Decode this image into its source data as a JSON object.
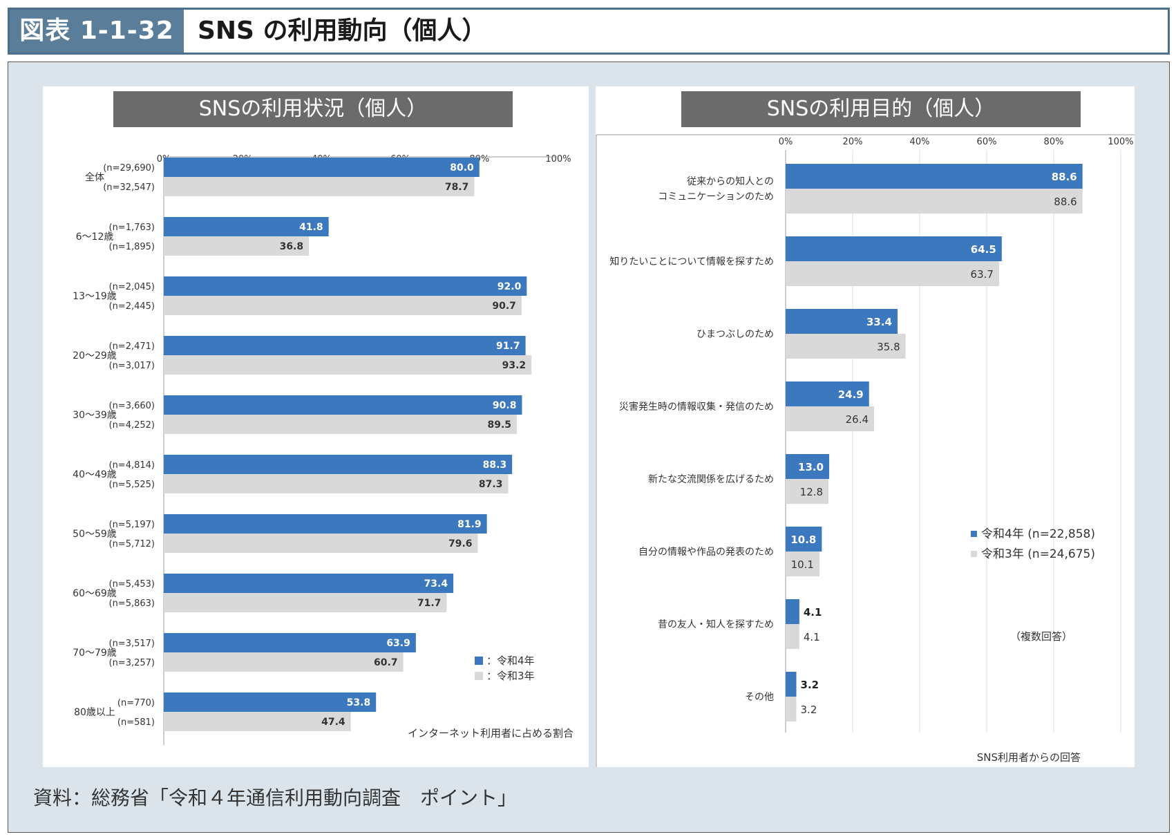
{
  "header": {
    "label": "図表 1-1-32",
    "title": "SNS の利用動向（個人）"
  },
  "source": "資料：総務省「令和４年通信利用動向調査　ポイント」",
  "colors": {
    "r4": "#3b78bd",
    "r3": "#d9d9d9",
    "panel": "#dbe4eb",
    "title_bg": "#6b6b6b",
    "header": "#5a7d9a"
  },
  "chart_data": [
    {
      "type": "bar",
      "orientation": "horizontal",
      "title": "SNSの利用状況（個人）",
      "xlim": [
        0,
        100
      ],
      "ticks": [
        "0%",
        "20%",
        "40%",
        "60%",
        "80%",
        "100%"
      ],
      "categories": [
        "全体",
        "6～12歳",
        "13～19歳",
        "20～29歳",
        "30～39歳",
        "40～49歳",
        "50～59歳",
        "60～69歳",
        "70～79歳",
        "80歳以上"
      ],
      "n_r4": [
        "(n=29,690)",
        "(n=1,763)",
        "(n=2,045)",
        "(n=2,471)",
        "(n=3,660)",
        "(n=4,814)",
        "(n=5,197)",
        "(n=5,453)",
        "(n=3,517)",
        "(n=770)"
      ],
      "n_r3": [
        "(n=32,547)",
        "(n=1,895)",
        "(n=2,445)",
        "(n=3,017)",
        "(n=4,252)",
        "(n=5,525)",
        "(n=5,712)",
        "(n=5,863)",
        "(n=3,257)",
        "(n=581)"
      ],
      "series": [
        {
          "name": "：令和4年",
          "values": [
            80.0,
            41.8,
            92.0,
            91.7,
            90.8,
            88.3,
            81.9,
            73.4,
            63.9,
            53.8
          ]
        },
        {
          "name": "：令和3年",
          "values": [
            78.7,
            36.8,
            90.7,
            93.2,
            89.5,
            87.3,
            79.6,
            71.7,
            60.7,
            47.4
          ]
        }
      ],
      "note": "インターネット利用者に占める割合",
      "legend": "bottom-right"
    },
    {
      "type": "bar",
      "orientation": "horizontal",
      "title": "SNSの利用目的（個人）",
      "xlim": [
        0,
        100
      ],
      "ticks": [
        "0%",
        "20%",
        "40%",
        "60%",
        "80%",
        "100%"
      ],
      "categories": [
        [
          "従来からの知人との",
          "コミュニケーションのため"
        ],
        [
          "知りたいことについて情報を探すため"
        ],
        [
          "ひまつぶしのため"
        ],
        [
          "災害発生時の情報収集・発信のため"
        ],
        [
          "新たな交流関係を広げるため"
        ],
        [
          "自分の情報や作品の発表のため"
        ],
        [
          "昔の友人・知人を探すため"
        ],
        [
          "その他"
        ]
      ],
      "series": [
        {
          "name": "令和4年 (n=22,858)",
          "values": [
            88.6,
            64.5,
            33.4,
            24.9,
            13.0,
            10.8,
            4.1,
            3.2
          ]
        },
        {
          "name": "令和3年 (n=24,675)",
          "values": [
            88.6,
            63.7,
            35.8,
            26.4,
            12.8,
            10.1,
            4.1,
            3.2
          ]
        }
      ],
      "multi_note": "（複数回答）",
      "note": "SNS利用者からの回答",
      "legend": "right"
    }
  ]
}
